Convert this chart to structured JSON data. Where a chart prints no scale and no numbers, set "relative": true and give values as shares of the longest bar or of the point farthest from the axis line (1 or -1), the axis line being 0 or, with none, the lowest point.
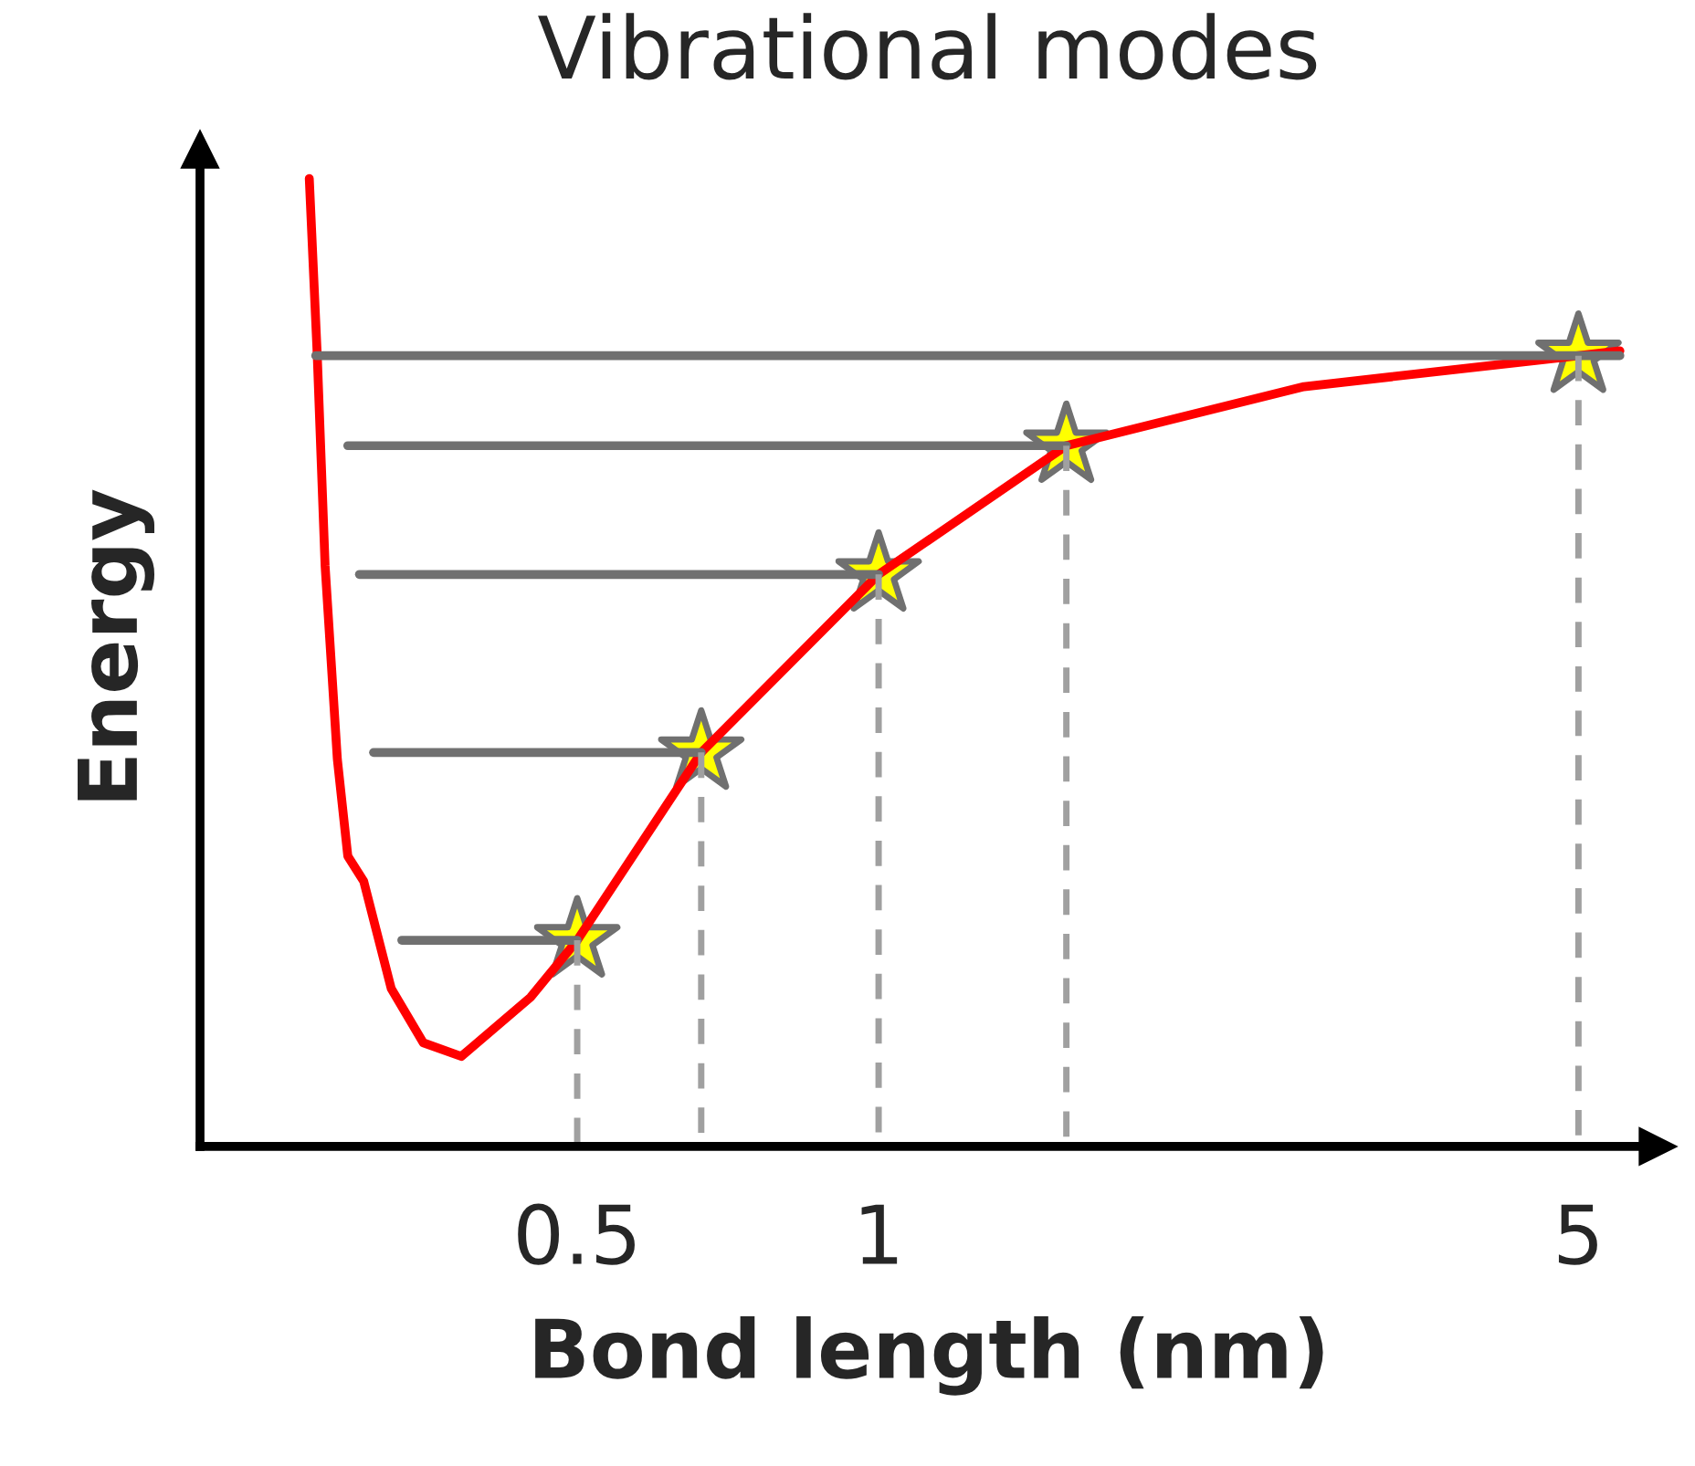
{
  "chart_data": {
    "type": "line",
    "title": "Vibrational modes",
    "xlabel": "Bond length (nm)",
    "ylabel": "Energy",
    "relative": true,
    "log": "x",
    "xlim": [
      0.21,
      6
    ],
    "xticks": [
      0.5,
      1,
      5
    ],
    "grid": false,
    "legend": false,
    "series": [
      {
        "color": "#ff0000",
        "x": [
          0.27,
          0.275,
          0.28,
          0.288,
          0.295,
          0.306,
          0.326,
          0.351,
          0.383,
          0.449,
          0.5,
          0.665,
          1,
          1.54,
          2.66,
          5,
          5.5
        ],
        "values": [
          1.0,
          0.817,
          0.6,
          0.4,
          0.3,
          0.274,
          0.163,
          0.107,
          0.093,
          0.154,
          0.213,
          0.407,
          0.591,
          0.724,
          0.785,
          0.817,
          0.822
        ]
      },
      {
        "color": "#707070",
        "x": [
          0.334,
          0.5
        ],
        "values": [
          0.213,
          0.213
        ]
      },
      {
        "color": "#707070",
        "x": [
          0.313,
          0.665
        ],
        "values": [
          0.407,
          0.407
        ]
      },
      {
        "color": "#707070",
        "x": [
          0.303,
          1
        ],
        "values": [
          0.591,
          0.591
        ]
      },
      {
        "color": "#707070",
        "x": [
          0.295,
          1.54
        ],
        "values": [
          0.724,
          0.724
        ]
      },
      {
        "color": "#707070",
        "x": [
          0.274,
          5.5
        ],
        "values": [
          0.817,
          0.817
        ]
      },
      {
        "color": "#a0a0a0",
        "line_style": "dashed",
        "x": [
          0.5,
          0.5
        ],
        "values": [
          0.213,
          0
        ]
      },
      {
        "color": "#a0a0a0",
        "line_style": "dashed",
        "x": [
          0.665,
          0.665
        ],
        "values": [
          0.407,
          0
        ]
      },
      {
        "color": "#a0a0a0",
        "line_style": "dashed",
        "x": [
          1,
          1
        ],
        "values": [
          0.591,
          0
        ]
      },
      {
        "color": "#a0a0a0",
        "line_style": "dashed",
        "x": [
          1.54,
          1.54
        ],
        "values": [
          0.724,
          0
        ]
      },
      {
        "color": "#a0a0a0",
        "line_style": "dashed",
        "x": [
          5,
          5
        ],
        "values": [
          0.817,
          0
        ]
      },
      {
        "type": "scatter",
        "marker": "star",
        "color": "#ffff00",
        "x": [
          0.5,
          0.665,
          1,
          1.54,
          5
        ],
        "values": [
          0.213,
          0.407,
          0.591,
          0.724,
          0.817
        ]
      }
    ]
  }
}
